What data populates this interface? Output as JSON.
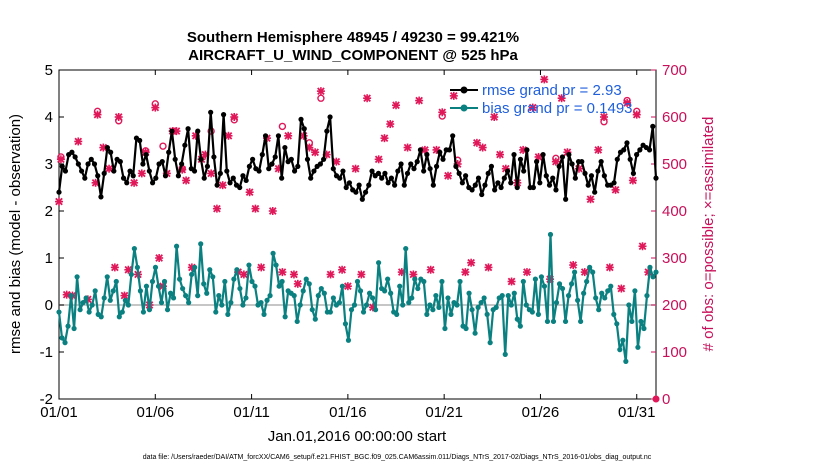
{
  "chart_data": {
    "type": "line",
    "title_line1": "Southern Hemisphere 48945 / 49230 = 99.421%",
    "title_line2": "AIRCRAFT_U_WIND_COMPONENT @ 525 hPa",
    "xlabel": "Jan.01,2016 00:00:00 start",
    "ylabel_left": "rmse and bias (model - observation)",
    "ylabel_right": "# of obs: o=possible; ×=assimilated",
    "footer": "data file: /Users/raeder/DAI/ATM_forcXX/CAM6_setup/f.e21.FHIST_BGC.f09_025.CAM6assim.011/Diags_NTrS_2017-02/Diags_NTrS_2016-01/obs_diag_output.nc",
    "x_tick_labels": [
      "01/01",
      "01/06",
      "01/11",
      "01/16",
      "01/21",
      "01/26",
      "01/31"
    ],
    "x_tick_days": [
      1,
      6,
      11,
      16,
      21,
      26,
      31
    ],
    "xlim_days": [
      1,
      32
    ],
    "ylim_left": [
      -2,
      5
    ],
    "yticks_left": [
      "-2",
      "-1",
      "0",
      "1",
      "2",
      "3",
      "4",
      "5"
    ],
    "ylim_right": [
      0,
      700
    ],
    "yticks_right": [
      "0",
      "100",
      "200",
      "300",
      "400",
      "500",
      "600",
      "700"
    ],
    "legend": [
      {
        "label": "rmse grand pr = 2.93",
        "color": "#000000"
      },
      {
        "label": "bias grand pr = 0.1493",
        "color": "#0a8080"
      }
    ],
    "legend_placement": "top-right",
    "colors": {
      "rmse": "#000000",
      "bias": "#0a8080",
      "obs": "#e0185a",
      "legend_text": "#1f5fdc",
      "right_axis": "#c8105a"
    },
    "series": [
      {
        "name": "rmse",
        "axis": "left",
        "values": [
          2.4,
          2.95,
          2.85,
          3.2,
          3.25,
          3.15,
          3.0,
          2.85,
          2.7,
          3.0,
          3.1,
          3.0,
          2.75,
          2.3,
          2.8,
          3.35,
          3.25,
          2.85,
          3.1,
          3.05,
          2.7,
          2.6,
          2.85,
          2.75,
          3.55,
          3.5,
          3.0,
          3.2,
          2.85,
          2.6,
          2.7,
          3.0,
          3.05,
          2.75,
          3.25,
          3.7,
          3.1,
          2.75,
          3.0,
          3.4,
          3.75,
          2.9,
          2.85,
          3.7,
          3.1,
          2.7,
          2.95,
          4.1,
          3.15,
          2.55,
          2.8,
          4.05,
          2.85,
          2.6,
          2.7,
          2.55,
          2.5,
          2.75,
          2.65,
          2.95,
          3.1,
          2.9,
          2.85,
          3.2,
          3.6,
          2.9,
          3.0,
          3.15,
          3.6,
          2.7,
          3.35,
          3.05,
          3.1,
          2.85,
          2.95,
          3.95,
          3.75,
          3.1,
          2.7,
          2.85,
          2.95,
          3.0,
          3.1,
          3.7,
          4.0,
          2.9,
          2.75,
          2.7,
          2.85,
          2.5,
          2.6,
          2.45,
          2.4,
          2.55,
          2.25,
          2.4,
          2.55,
          2.85,
          2.75,
          2.8,
          2.7,
          2.8,
          2.6,
          2.7,
          2.55,
          2.85,
          3.0,
          2.55,
          2.8,
          3.0,
          2.9,
          3.05,
          3.3,
          2.85,
          3.2,
          2.9,
          2.55,
          2.95,
          3.25,
          3.1,
          3.3,
          3.3,
          3.6,
          2.95,
          2.8,
          2.6,
          2.75,
          2.5,
          2.45,
          2.55,
          2.7,
          2.35,
          2.55,
          2.8,
          2.95,
          2.45,
          2.6,
          2.5,
          2.7,
          2.85,
          2.6,
          3.2,
          2.5,
          3.1,
          2.85,
          3.3,
          2.5,
          2.5,
          3.05,
          2.6,
          3.2,
          2.75,
          2.55,
          2.7,
          2.45,
          2.95,
          3.15,
          2.25,
          3.2,
          3.0,
          2.7,
          3.05,
          3.05,
          2.8,
          2.55,
          2.75,
          2.4,
          2.85,
          3.05,
          2.75,
          2.55,
          2.55,
          2.6,
          3.1,
          3.25,
          3.3,
          3.45,
          3.1,
          2.8,
          3.2,
          3.3,
          3.4,
          3.35,
          3.3,
          3.8,
          2.7
        ]
      },
      {
        "name": "bias",
        "axis": "left",
        "values": [
          -0.15,
          -0.7,
          -0.8,
          -0.45,
          0.2,
          -0.5,
          0.6,
          -0.1,
          0.05,
          0.15,
          -0.15,
          0.0,
          0.3,
          -0.2,
          -0.25,
          0.15,
          0.6,
          0.1,
          0.3,
          0.5,
          -0.25,
          -0.15,
          0.1,
          0.0,
          0.65,
          1.2,
          0.8,
          0.3,
          -0.15,
          0.4,
          -0.1,
          0.5,
          0.8,
          0.4,
          0.05,
          0.5,
          -0.1,
          0.25,
          0.15,
          1.25,
          0.55,
          0.35,
          0.2,
          0.05,
          0.65,
          0.8,
          0.2,
          1.3,
          0.45,
          0.25,
          0.75,
          0.6,
          -0.15,
          0.2,
          0.0,
          0.5,
          -0.2,
          0.05,
          0.55,
          0.75,
          0.35,
          0.0,
          0.15,
          0.85,
          0.5,
          0.4,
          0.0,
          0.05,
          -0.2,
          0.1,
          0.2,
          1.1,
          0.85,
          0.4,
          0.5,
          -0.25,
          0.3,
          0.25,
          0.2,
          -0.35,
          0.0,
          0.3,
          0.55,
          0.45,
          -0.1,
          -0.3,
          0.2,
          0.35,
          0.25,
          -0.15,
          -0.15,
          0.15,
          0.0,
          0.05,
          0.4,
          -0.4,
          -0.75,
          -0.1,
          0.0,
          0.5,
          0.3,
          -0.15,
          0.0,
          0.25,
          0.15,
          -0.1,
          0.9,
          0.35,
          0.3,
          0.55,
          0.25,
          -0.15,
          -0.2,
          0.4,
          0.0,
          1.2,
          0.05,
          0.15,
          0.55,
          0.35,
          0.55,
          0.5,
          -0.2,
          0.0,
          -0.1,
          0.2,
          -0.05,
          0.5,
          -0.5,
          0.15,
          -0.2,
          0.05,
          0.0,
          0.5,
          -0.45,
          -0.5,
          0.25,
          -0.1,
          -0.6,
          -0.05,
          0.05,
          0.15,
          -0.2,
          -0.8,
          -0.1,
          -0.05,
          0.15,
          0.2,
          -1.05,
          0.2,
          0.0,
          0.25,
          -0.3,
          -0.45,
          0.5,
          0.0,
          -0.1,
          -0.15,
          0.55,
          -0.2,
          0.6,
          0.4,
          -0.35,
          1.5,
          -0.35,
          0.05,
          0.45,
          0.35,
          -0.35,
          0.2,
          0.45,
          0.7,
          0.1,
          -0.35,
          0.25,
          0.5,
          0.8,
          0.7,
          0.15,
          -0.1,
          0.25,
          0.15,
          0.3,
          0.4,
          -0.2,
          -0.4,
          -0.95,
          -0.75,
          -1.2,
          0.0,
          -0.35,
          0.3,
          -0.9,
          -0.35,
          -0.5,
          0.2,
          0.8,
          0.6,
          0.7
        ]
      },
      {
        "name": "obs assimilated",
        "axis": "right",
        "marker": "x",
        "points": [
          [
            1.0,
            420
          ],
          [
            1.1,
            510
          ],
          [
            1.4,
            222
          ],
          [
            1.7,
            220
          ],
          [
            2.0,
            548
          ],
          [
            2.5,
            212
          ],
          [
            2.9,
            460
          ],
          [
            3.0,
            605
          ],
          [
            3.3,
            535
          ],
          [
            3.6,
            490
          ],
          [
            3.9,
            280
          ],
          [
            4.1,
            600
          ],
          [
            4.4,
            220
          ],
          [
            4.6,
            275
          ],
          [
            4.9,
            460
          ],
          [
            5.1,
            265
          ],
          [
            5.3,
            480
          ],
          [
            5.5,
            525
          ],
          [
            5.7,
            200
          ],
          [
            6.0,
            620
          ],
          [
            6.2,
            300
          ],
          [
            6.4,
            240
          ],
          [
            6.6,
            480
          ],
          [
            6.9,
            570
          ],
          [
            7.1,
            570
          ],
          [
            7.4,
            488
          ],
          [
            7.6,
            465
          ],
          [
            7.9,
            280
          ],
          [
            8.1,
            560
          ],
          [
            8.4,
            510
          ],
          [
            8.6,
            520
          ],
          [
            8.9,
            480
          ],
          [
            9.2,
            405
          ],
          [
            9.5,
            455
          ],
          [
            9.8,
            560
          ],
          [
            10.1,
            600
          ],
          [
            10.3,
            270
          ],
          [
            10.6,
            265
          ],
          [
            10.9,
            440
          ],
          [
            11.2,
            405
          ],
          [
            11.5,
            280
          ],
          [
            11.8,
            555
          ],
          [
            12.1,
            400
          ],
          [
            12.4,
            490
          ],
          [
            12.6,
            270
          ],
          [
            12.9,
            560
          ],
          [
            13.2,
            265
          ],
          [
            13.4,
            245
          ],
          [
            13.7,
            560
          ],
          [
            14.0,
            535
          ],
          [
            14.3,
            525
          ],
          [
            14.6,
            655
          ],
          [
            14.9,
            520
          ],
          [
            15.1,
            265
          ],
          [
            15.4,
            505
          ],
          [
            15.7,
            275
          ],
          [
            16.0,
            240
          ],
          [
            16.4,
            490
          ],
          [
            16.7,
            265
          ],
          [
            17.0,
            640
          ],
          [
            17.3,
            195
          ],
          [
            17.6,
            510
          ],
          [
            17.9,
            555
          ],
          [
            18.2,
            585
          ],
          [
            18.5,
            625
          ],
          [
            18.8,
            270
          ],
          [
            19.1,
            535
          ],
          [
            19.4,
            265
          ],
          [
            19.7,
            635
          ],
          [
            20.0,
            530
          ],
          [
            20.3,
            275
          ],
          [
            20.6,
            530
          ],
          [
            20.9,
            610
          ],
          [
            21.2,
            475
          ],
          [
            21.5,
            645
          ],
          [
            21.7,
            500
          ],
          [
            22.1,
            270
          ],
          [
            22.4,
            290
          ],
          [
            22.7,
            545
          ],
          [
            23.0,
            535
          ],
          [
            23.3,
            280
          ],
          [
            23.6,
            600
          ],
          [
            23.9,
            520
          ],
          [
            24.2,
            490
          ],
          [
            24.5,
            250
          ],
          [
            24.8,
            460
          ],
          [
            25.1,
            530
          ],
          [
            25.3,
            270
          ],
          [
            25.6,
            620
          ],
          [
            25.9,
            515
          ],
          [
            26.2,
            680
          ],
          [
            26.5,
            255
          ],
          [
            26.8,
            505
          ],
          [
            27.1,
            640
          ],
          [
            27.4,
            525
          ],
          [
            27.7,
            285
          ],
          [
            28.0,
            490
          ],
          [
            28.3,
            270
          ],
          [
            28.6,
            425
          ],
          [
            29.0,
            530
          ],
          [
            29.3,
            600
          ],
          [
            29.6,
            280
          ],
          [
            29.9,
            445
          ],
          [
            30.2,
            235
          ],
          [
            30.5,
            630
          ],
          [
            30.8,
            465
          ],
          [
            31.0,
            605
          ],
          [
            31.3,
            325
          ],
          [
            31.6,
            270
          ]
        ]
      },
      {
        "name": "obs possible",
        "axis": "right",
        "marker": "o",
        "points": [
          [
            1.1,
            515
          ],
          [
            3.0,
            612
          ],
          [
            4.1,
            592
          ],
          [
            5.5,
            528
          ],
          [
            6.0,
            628
          ],
          [
            6.4,
            538
          ],
          [
            7.4,
            490
          ],
          [
            8.9,
            570
          ],
          [
            10.1,
            594
          ],
          [
            12.6,
            580
          ],
          [
            14.0,
            545
          ],
          [
            14.6,
            640
          ],
          [
            20.9,
            602
          ],
          [
            21.7,
            508
          ],
          [
            26.8,
            512
          ],
          [
            29.3,
            590
          ],
          [
            31.0,
            612
          ],
          [
            30.5,
            635
          ]
        ]
      }
    ]
  }
}
